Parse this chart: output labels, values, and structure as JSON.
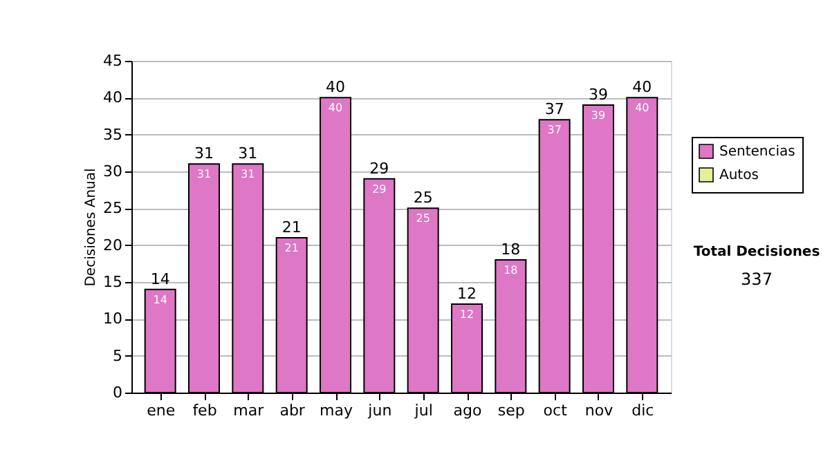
{
  "chart_data": {
    "type": "bar",
    "ylabel": "Decisiones Anual",
    "categories": [
      "ene",
      "feb",
      "mar",
      "abr",
      "may",
      "jun",
      "jul",
      "ago",
      "sep",
      "oct",
      "nov",
      "dic"
    ],
    "series": [
      {
        "name": "Sentencias",
        "color": "#dd77c6",
        "values": [
          14,
          31,
          31,
          21,
          40,
          29,
          25,
          12,
          18,
          37,
          39,
          40
        ]
      },
      {
        "name": "Autos",
        "color": "#e6ee99",
        "values": [
          null,
          null,
          null,
          null,
          null,
          null,
          null,
          null,
          null,
          null,
          null,
          null
        ]
      }
    ],
    "stacked": true,
    "data_labels": true,
    "totals": [
      "14",
      "31",
      "31",
      "21",
      "40",
      "29",
      "25",
      "12",
      "18",
      "37",
      "39",
      "40"
    ],
    "ylim": [
      0,
      45
    ],
    "yticks": [
      0,
      5,
      10,
      15,
      20,
      25,
      30,
      35,
      40,
      45
    ],
    "grid": "y",
    "legend": "right",
    "annotations": [
      "Total Decisiones",
      "337"
    ]
  }
}
